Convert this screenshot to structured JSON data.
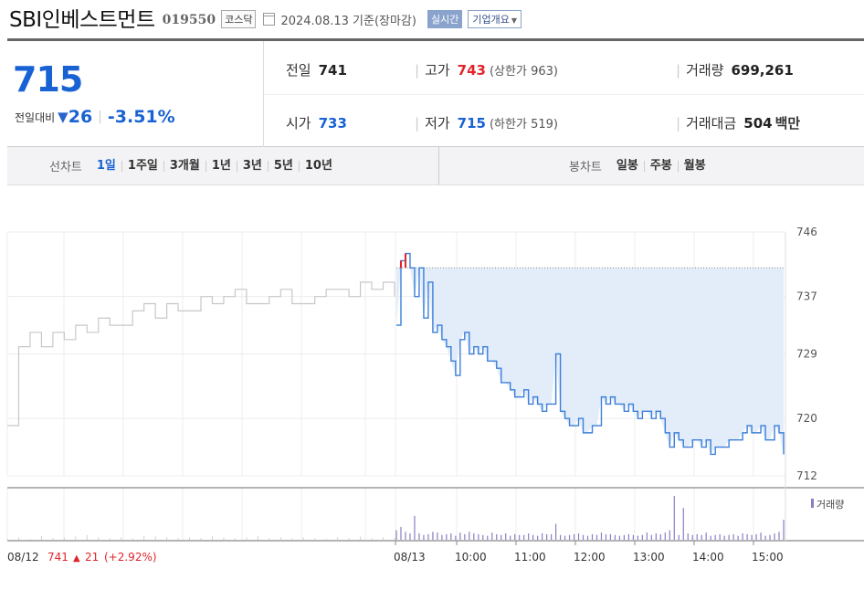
{
  "header": {
    "company": "SBI인베스트먼트",
    "code": "019550",
    "market": "코스닥",
    "date_info": "2024.08.13 기준(장마감)",
    "live_label": "실시간",
    "corp_label": "기업개요"
  },
  "summary": {
    "price": "715",
    "change_label": "전일대비",
    "change": "26",
    "change_pct": "-3.51%",
    "prev_close_label": "전일",
    "prev_close": "741",
    "high_label": "고가",
    "high": "743",
    "upper_limit_label": "(상한가",
    "upper_limit": "963)",
    "volume_label": "거래량",
    "volume": "699,261",
    "open_label": "시가",
    "open": "733",
    "low_label": "저가",
    "low": "715",
    "lower_limit_label": "(하한가",
    "lower_limit": "519)",
    "amount_label": "거래대금",
    "amount": "504",
    "amount_unit": "백만"
  },
  "periods": {
    "line_label": "선차트",
    "line_items": [
      "1일",
      "1주일",
      "3개월",
      "1년",
      "3년",
      "5년",
      "10년"
    ],
    "selected": "1일",
    "candle_label": "봉차트",
    "candle_items": [
      "일봉",
      "주봉",
      "월봉"
    ]
  },
  "colors": {
    "up": "#e0242a",
    "down": "#1862d3",
    "today_line": "#3b7fd9",
    "prev_line": "#c8c8c8",
    "fill": "#e3edfa",
    "volume": "#8c7cc4"
  },
  "chart_data": {
    "type": "line",
    "y_ticks": [
      "746",
      "737",
      "729",
      "720",
      "712"
    ],
    "ylim": [
      712,
      746
    ],
    "x_tick_labels": [
      "08/13",
      "10:00",
      "11:00",
      "12:00",
      "13:00",
      "14:00",
      "15:00"
    ],
    "prev_day": {
      "date": "08/12",
      "close": "741",
      "change": "21",
      "change_pct": "(+2.92%)"
    },
    "reference_line": 741,
    "volume_label": "거래량",
    "series": [
      {
        "values": [
          719,
          730,
          732,
          730,
          732,
          731,
          733,
          732,
          734,
          733,
          733,
          735,
          736,
          734,
          736,
          735,
          735,
          737,
          736,
          737,
          738,
          736,
          736,
          737,
          738,
          736,
          736,
          737,
          738,
          738,
          737,
          739,
          738,
          739,
          737
        ]
      },
      {
        "values": [
          733,
          742,
          743,
          741,
          737,
          741,
          734,
          739,
          732,
          733,
          731,
          730,
          728,
          726,
          731,
          732,
          729,
          730,
          729,
          730,
          728,
          728,
          727,
          725,
          725,
          724,
          723,
          723,
          724,
          722,
          723,
          722,
          721,
          722,
          722,
          729,
          721,
          720,
          719,
          719,
          720,
          718,
          718,
          719,
          719,
          723,
          722,
          723,
          722,
          722,
          721,
          722,
          721,
          720,
          721,
          721,
          720,
          721,
          720,
          718,
          716,
          718,
          717,
          716,
          716,
          717,
          717,
          716,
          717,
          715,
          716,
          716,
          716,
          717,
          717,
          717,
          718,
          719,
          718,
          718,
          719,
          717,
          717,
          719,
          718,
          715
        ]
      }
    ],
    "volume": {
      "prev_day": [
        2,
        3,
        1,
        5,
        2,
        3,
        4,
        6,
        3,
        2,
        3,
        2,
        5,
        4,
        3,
        2,
        3,
        2,
        4,
        3,
        2,
        3,
        5,
        2,
        3,
        2,
        3,
        2,
        1,
        3,
        2,
        4,
        2,
        3,
        2
      ],
      "today": [
        12,
        16,
        10,
        8,
        30,
        8,
        6,
        7,
        10,
        9,
        6,
        7,
        8,
        5,
        9,
        7,
        10,
        8,
        7,
        6,
        5,
        9,
        7,
        6,
        8,
        5,
        7,
        6,
        6,
        8,
        6,
        5,
        8,
        7,
        7,
        20,
        6,
        5,
        6,
        7,
        8,
        6,
        5,
        7,
        6,
        9,
        7,
        7,
        6,
        5,
        6,
        7,
        6,
        5,
        6,
        9,
        6,
        8,
        7,
        9,
        12,
        55,
        6,
        40,
        8,
        6,
        7,
        6,
        9,
        5,
        6,
        7,
        5,
        6,
        7,
        5,
        8,
        7,
        6,
        7,
        9,
        5,
        6,
        8,
        10,
        25
      ]
    }
  }
}
